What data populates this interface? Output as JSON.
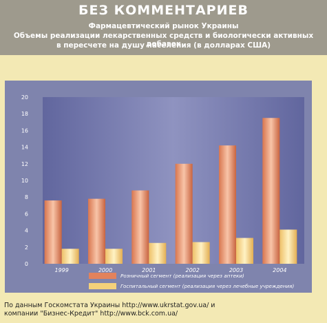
{
  "header": {
    "title": "БЕЗ КОММЕНТАРИЕВ",
    "subtitle1": "Фармацевтический рынок Украины",
    "subtitle2": "Объемы реализации лекарственных средств и биологически активных добавок",
    "subtitle3": "в пересчете на душу населения (в долларах США)"
  },
  "source": {
    "line1": "По данным Госкомстата Украины http://www.ukrstat.gov.ua/ и",
    "line2": "компании \"Бизнес-Кредит\" http://www.bck.com.ua/"
  },
  "colors": {
    "plot_bg": "#6d72a6",
    "retail": "#e2825c",
    "hospital": "#f4d07a"
  },
  "chart_data": {
    "type": "bar",
    "categories": [
      "1999",
      "2000",
      "2001",
      "2002",
      "2003",
      "2004"
    ],
    "series": [
      {
        "name": "Розничный сегмент (реализация через аптеки)",
        "values": [
          7.6,
          7.8,
          8.8,
          12.0,
          14.2,
          17.5
        ]
      },
      {
        "name": "Госпитальный сегмент (реализация через лечебные учреждения)",
        "values": [
          1.8,
          1.8,
          2.5,
          2.6,
          3.1,
          4.1
        ]
      }
    ],
    "ylim": [
      0,
      20
    ],
    "yticks": [
      0,
      2,
      4,
      6,
      8,
      10,
      12,
      14,
      16,
      18,
      20
    ],
    "grid": false,
    "legend": "bottom"
  }
}
